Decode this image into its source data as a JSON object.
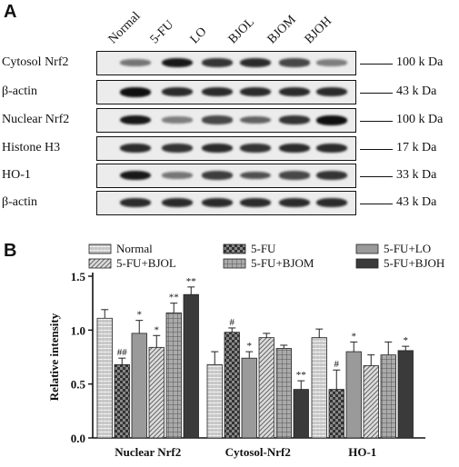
{
  "panel_a": {
    "letter": "A",
    "lanes": [
      "Normal",
      "5-FU",
      "LO",
      "BJOL",
      "BJOM",
      "BJOH"
    ],
    "blots": [
      {
        "label": "Cytosol Nrf2",
        "kda": "100 k Da",
        "intensity": [
          0.45,
          0.95,
          0.8,
          0.85,
          0.7,
          0.4
        ]
      },
      {
        "label": "β-actin",
        "kda": "43 k Da",
        "intensity": [
          1.0,
          0.85,
          0.85,
          0.85,
          0.85,
          0.85
        ]
      },
      {
        "label": "Nuclear Nrf2",
        "kda": "100 k Da",
        "intensity": [
          0.95,
          0.4,
          0.7,
          0.55,
          0.8,
          1.0
        ]
      },
      {
        "label": "Histone H3",
        "kda": "17 k Da",
        "intensity": [
          0.85,
          0.8,
          0.85,
          0.8,
          0.85,
          0.85
        ]
      },
      {
        "label": "HO-1",
        "kda": "33 k Da",
        "intensity": [
          0.95,
          0.45,
          0.75,
          0.65,
          0.7,
          0.8
        ]
      },
      {
        "label": "β-actin",
        "kda": "43 k Da",
        "intensity": [
          0.85,
          0.85,
          0.85,
          0.85,
          0.85,
          0.85
        ]
      }
    ]
  },
  "panel_b": {
    "letter": "B"
  },
  "chart_data": {
    "type": "bar",
    "title": "",
    "xlabel": "",
    "ylabel": "Relative intensity",
    "ylim": [
      0,
      1.5
    ],
    "yticks": [
      "0.0",
      "0.5",
      "1.0",
      "1.5"
    ],
    "grid": false,
    "legend_position": "top",
    "categories": [
      "Nuclear Nrf2",
      "Cytosol-Nrf2",
      "HO-1"
    ],
    "series": [
      {
        "name": "Normal",
        "pattern": "hatch-light",
        "values": [
          1.11,
          0.68,
          0.93
        ],
        "errors": [
          0.08,
          0.12,
          0.08
        ],
        "marks": [
          "",
          "",
          ""
        ]
      },
      {
        "name": "5-FU",
        "pattern": "checker-dark",
        "values": [
          0.68,
          0.98,
          0.45
        ],
        "errors": [
          0.06,
          0.04,
          0.18
        ],
        "marks": [
          "##",
          "#",
          "#"
        ]
      },
      {
        "name": "5-FU+LO",
        "pattern": "solid-grey",
        "values": [
          0.97,
          0.74,
          0.8
        ],
        "errors": [
          0.12,
          0.06,
          0.09
        ],
        "marks": [
          "*",
          "*",
          "*"
        ]
      },
      {
        "name": "5-FU+BJOL",
        "pattern": "diag",
        "values": [
          0.84,
          0.93,
          0.67
        ],
        "errors": [
          0.11,
          0.04,
          0.1
        ],
        "marks": [
          "*",
          "",
          ""
        ]
      },
      {
        "name": "5-FU+BJOM",
        "pattern": "grid",
        "values": [
          1.16,
          0.83,
          0.77
        ],
        "errors": [
          0.09,
          0.03,
          0.12
        ],
        "marks": [
          "**",
          "",
          ""
        ]
      },
      {
        "name": "5-FU+BJOH",
        "pattern": "dark",
        "values": [
          1.33,
          0.45,
          0.81
        ],
        "errors": [
          0.07,
          0.08,
          0.04
        ],
        "marks": [
          "**",
          "**",
          "*"
        ]
      }
    ]
  }
}
